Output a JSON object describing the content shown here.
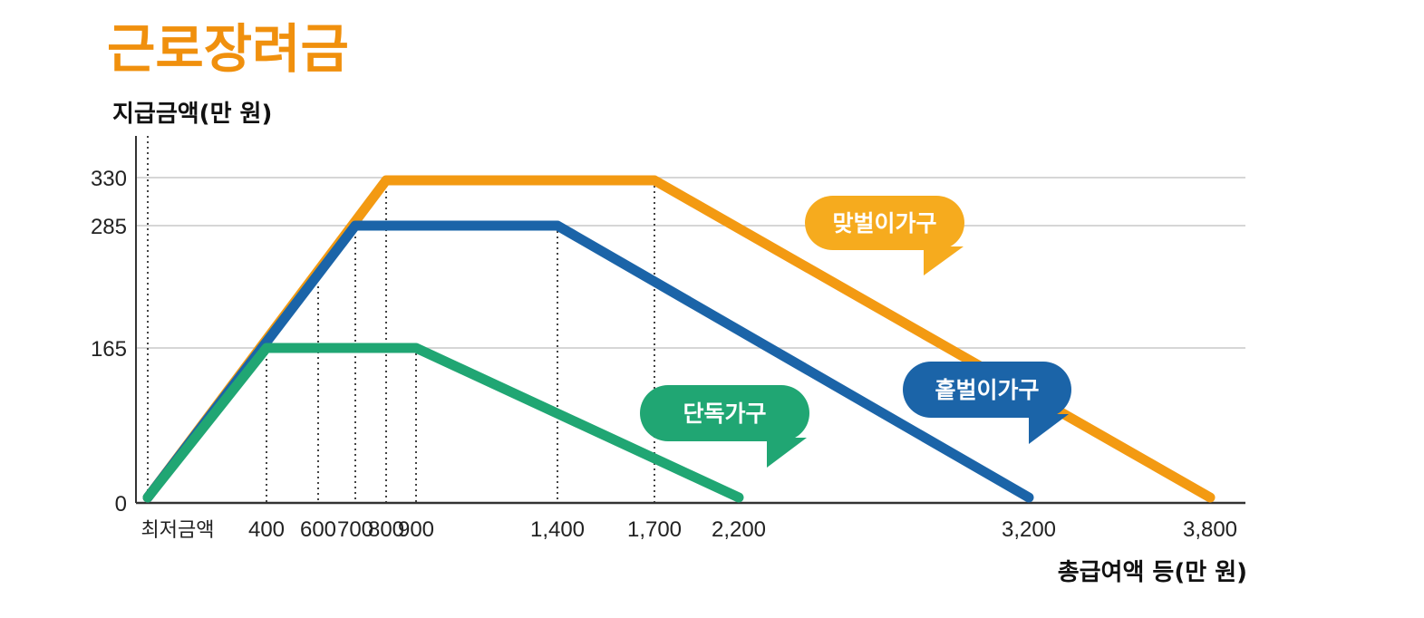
{
  "chart_data": {
    "type": "line",
    "title": "근로장려금",
    "ylabel": "지급금액(만 원)",
    "xlabel": "총급여액 등(만 원)",
    "ylim": [
      0,
      330
    ],
    "y_ticks": [
      0,
      165,
      285,
      330
    ],
    "x_ticks": [
      {
        "value": 0,
        "label": "최저금액"
      },
      {
        "value": 400,
        "label": "400"
      },
      {
        "value": 600,
        "label": "600"
      },
      {
        "value": 700,
        "label": "700"
      },
      {
        "value": 800,
        "label": "800"
      },
      {
        "value": 900,
        "label": "900"
      },
      {
        "value": 1400,
        "label": "1,400"
      },
      {
        "value": 1700,
        "label": "1,700"
      },
      {
        "value": 2200,
        "label": "2,200"
      },
      {
        "value": 3200,
        "label": "3,200"
      },
      {
        "value": 3800,
        "label": "3,800"
      }
    ],
    "vertical_guides": [
      0,
      400,
      600,
      700,
      800,
      900,
      1400,
      1700
    ],
    "series": [
      {
        "name": "맞벌이가구",
        "color": "#f39a12",
        "bubble_color": "#f6ab1e",
        "x": [
          0,
          800,
          1700,
          3800
        ],
        "y": [
          0,
          330,
          330,
          0
        ]
      },
      {
        "name": "홑벌이가구",
        "color": "#1b64a8",
        "bubble_color": "#1b64a8",
        "x": [
          0,
          700,
          1400,
          3200
        ],
        "y": [
          0,
          285,
          285,
          0
        ]
      },
      {
        "name": "단독가구",
        "color": "#20a673",
        "bubble_color": "#20a673",
        "x": [
          0,
          400,
          900,
          2200
        ],
        "y": [
          0,
          165,
          165,
          0
        ]
      }
    ],
    "grid": "horizontal",
    "legend": "callout bubbles"
  }
}
